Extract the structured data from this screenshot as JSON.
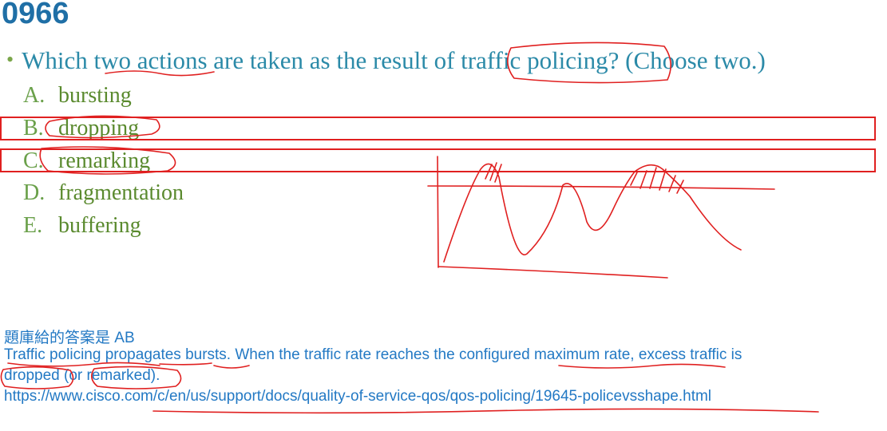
{
  "title": "0966",
  "question": {
    "bullet": "•",
    "text": "Which two actions are taken as the result of traffic policing? (Choose two.)"
  },
  "options": [
    {
      "letter": "A.",
      "text": "bursting"
    },
    {
      "letter": "B.",
      "text": "dropping"
    },
    {
      "letter": "C.",
      "text": "remarking"
    },
    {
      "letter": "D.",
      "text": "fragmentation"
    },
    {
      "letter": "E.",
      "text": "buffering"
    }
  ],
  "explanation": {
    "answer_line": "題庫給的答案是 AB",
    "line1": "Traffic policing propagates bursts. When the traffic rate reaches the configured maximum rate, excess traffic is",
    "line2": "dropped (or remarked).",
    "url": "https://www.cisco.com/c/en/us/support/docs/quality-of-service-qos/qos-policing/19645-policevsshape.html"
  },
  "colors": {
    "title": "#1f6fa6",
    "question": "#2b8aa8",
    "options": "#5a8a2e",
    "explanation": "#2379c4",
    "annotation": "#e02020"
  }
}
